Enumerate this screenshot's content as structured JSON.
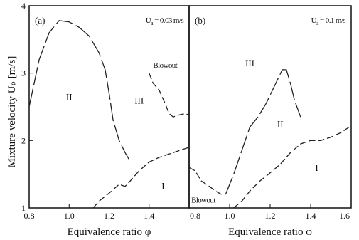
{
  "chart_data": [
    {
      "type": "line",
      "panel_label": "(a)",
      "condition": "Uₐ = 0.03 m/s",
      "condition_text": {
        "u": "U",
        "sub": "a",
        "rest": " = 0.03 m/s"
      },
      "xlabel": "Equivalence ratio φ",
      "ylabel": "Mixture velocity Uₚ [m/s]",
      "xlim": [
        0.8,
        1.6
      ],
      "ylim": [
        1,
        4
      ],
      "xticks": [
        "0.8",
        "1.0",
        "1.2",
        "1.4",
        "1.6"
      ],
      "yticks": [
        "1",
        "2",
        "3",
        "4"
      ],
      "grid": false,
      "series": [
        {
          "dash": "long",
          "x": [
            0.8,
            0.85,
            0.9,
            0.95,
            1.0,
            1.05,
            1.1,
            1.15,
            1.18,
            1.2,
            1.22,
            1.25,
            1.28,
            1.3
          ],
          "y": [
            2.5,
            3.2,
            3.6,
            3.78,
            3.76,
            3.68,
            3.55,
            3.3,
            3.05,
            2.7,
            2.3,
            2.0,
            1.82,
            1.72
          ]
        },
        {
          "dash": "dash",
          "x": [
            1.4,
            1.42,
            1.45,
            1.48,
            1.5,
            1.52,
            1.55,
            1.58,
            1.6
          ],
          "y": [
            3.0,
            2.85,
            2.75,
            2.55,
            2.4,
            2.35,
            2.38,
            2.4,
            2.38
          ]
        },
        {
          "dash": "dash",
          "x": [
            1.12,
            1.15,
            1.2,
            1.25,
            1.28,
            1.3,
            1.35,
            1.4,
            1.45,
            1.5,
            1.55,
            1.6
          ],
          "y": [
            1.0,
            1.1,
            1.22,
            1.35,
            1.32,
            1.38,
            1.55,
            1.68,
            1.75,
            1.8,
            1.85,
            1.9
          ]
        }
      ],
      "regions": [
        {
          "label": "II",
          "x": 1.0,
          "y": 2.6
        },
        {
          "label": "III",
          "x": 1.35,
          "y": 2.55
        },
        {
          "label": "I",
          "x": 1.47,
          "y": 1.28
        }
      ],
      "annotations": [
        {
          "text": "Blowout",
          "x": 1.48,
          "y": 3.08
        }
      ]
    },
    {
      "type": "line",
      "panel_label": "(b)",
      "condition": "Uₐ = 0.1 m/s",
      "condition_text": {
        "u": "U",
        "sub": "a",
        "rest": " = 0.1 m/s"
      },
      "xlabel": "Equivalence ratio φ",
      "xlim": [
        0.8,
        1.6
      ],
      "ylim": [
        1,
        4
      ],
      "xticks": [
        "0.8",
        "1.0",
        "1.2",
        "1.4",
        "1.6"
      ],
      "grid": false,
      "series": [
        {
          "dash": "dash",
          "x": [
            0.8,
            0.83,
            0.86,
            0.9,
            0.93,
            0.96
          ],
          "y": [
            1.6,
            1.55,
            1.4,
            1.32,
            1.25,
            1.2
          ]
        },
        {
          "dash": "long",
          "x": [
            0.98,
            1.02,
            1.06,
            1.1,
            1.14,
            1.18,
            1.22,
            1.26,
            1.28,
            1.3,
            1.32,
            1.35
          ],
          "y": [
            1.2,
            1.5,
            1.85,
            2.2,
            2.35,
            2.55,
            2.8,
            3.05,
            3.05,
            2.85,
            2.6,
            2.35
          ]
        },
        {
          "dash": "dash",
          "x": [
            1.02,
            1.06,
            1.1,
            1.15,
            1.2,
            1.25,
            1.3,
            1.35,
            1.4,
            1.45,
            1.5,
            1.55,
            1.6
          ],
          "y": [
            1.0,
            1.1,
            1.25,
            1.4,
            1.52,
            1.65,
            1.82,
            1.95,
            2.0,
            2.0,
            2.05,
            2.12,
            2.22
          ]
        }
      ],
      "regions": [
        {
          "label": "III",
          "x": 1.1,
          "y": 3.1
        },
        {
          "label": "II",
          "x": 1.25,
          "y": 2.2
        },
        {
          "label": "I",
          "x": 1.43,
          "y": 1.55
        }
      ],
      "annotations": [
        {
          "text": "Blowout",
          "x": 0.87,
          "y": 1.08
        }
      ]
    }
  ]
}
